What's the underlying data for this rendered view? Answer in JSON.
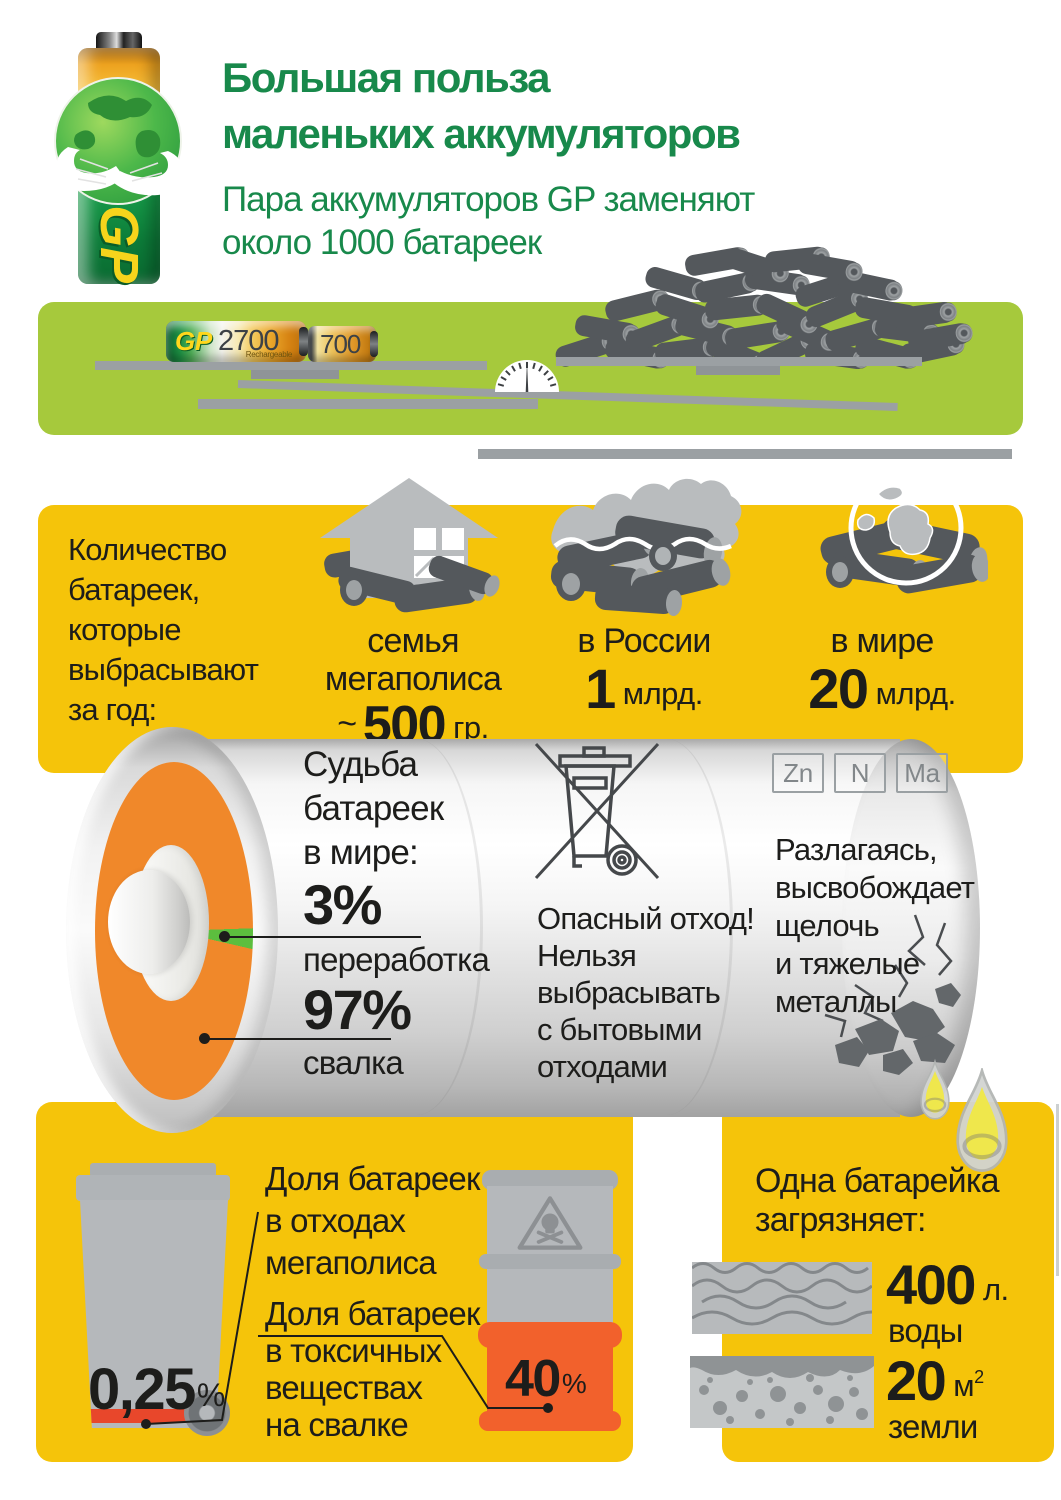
{
  "header": {
    "title_lines": [
      "Большая польза",
      "маленьких аккумуляторов"
    ],
    "subtitle_lines": [
      "Пара аккумуляторов GP заменяют",
      "около 1000 батареек"
    ],
    "logo_brand": "GP"
  },
  "scale_band": {
    "battery1_brand": "GP",
    "battery1_capacity": "2700",
    "battery1_sub": "Rechargeable",
    "battery2_capacity": "700"
  },
  "annual": {
    "intro_lines": [
      "Количество",
      "батареек,",
      "которые",
      "выбрасывают",
      "за год:"
    ],
    "items": [
      {
        "label": "семья мегаполиса",
        "prefix": "~",
        "value": "500",
        "unit": "гр."
      },
      {
        "label": "в России",
        "prefix": "",
        "value": "1",
        "unit": "млрд."
      },
      {
        "label": "в мире",
        "prefix": "",
        "value": "20",
        "unit": "млрд."
      }
    ]
  },
  "fate": {
    "heading_lines": [
      "Судьба",
      "батареек",
      "в мире:"
    ],
    "recycle_value": "3%",
    "recycle_label": "переработка",
    "landfill_value": "97%",
    "landfill_label": "свалка",
    "hazard_lines": [
      "Опасный отход!",
      "Нельзя",
      "выбрасывать",
      "с бытовыми",
      "отходами"
    ],
    "elements": [
      "Zn",
      "N",
      "Ma"
    ],
    "decompose_lines": [
      "Разлагаясь,",
      "высвобождает",
      "щелочь",
      "и тяжелые",
      "металлы"
    ]
  },
  "waste": {
    "bin_value": "0,25",
    "bin_unit": "%",
    "label1_lines": [
      "Доля батареек",
      "в отходах",
      "мегаполиса"
    ],
    "label2_lines": [
      "Доля батареек",
      "в токсичных",
      "веществах",
      "на свалке"
    ],
    "barrel_value": "40",
    "barrel_unit": "%"
  },
  "pollution": {
    "heading_lines": [
      "Одна батарейка",
      "загрязняет:"
    ],
    "water_value": "400",
    "water_unit": "л.",
    "water_label": "воды",
    "soil_value": "20",
    "soil_unit": "м",
    "soil_sup": "2",
    "soil_label": "земли"
  },
  "chart_data": {
    "type": "pie",
    "title": "Судьба батареек в мире",
    "slices": [
      {
        "label": "переработка",
        "value": 3,
        "color": "#5cbe3e"
      },
      {
        "label": "свалка",
        "value": 97,
        "color": "#f0882a"
      }
    ]
  },
  "colors": {
    "accent_green": "#18894b",
    "band_lime": "#a6c93c",
    "band_yellow": "#f5c40a",
    "pie_orange": "#f0882a",
    "pie_green": "#5cbe3e",
    "barrel_orange": "#f2612c",
    "stripe_red": "#e8472b",
    "text_black": "#1d1d1b"
  }
}
